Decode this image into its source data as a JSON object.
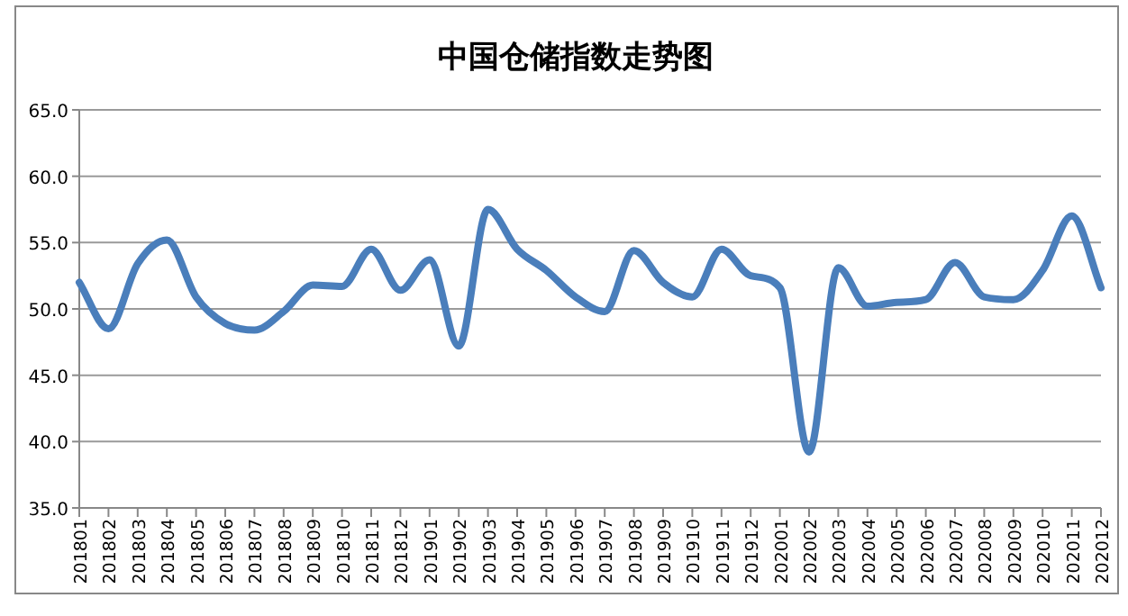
{
  "chart_data": {
    "type": "line",
    "title": "中国仓储指数走势图",
    "categories": [
      "201801",
      "201802",
      "201803",
      "201804",
      "201805",
      "201806",
      "201807",
      "201808",
      "201809",
      "201810",
      "201811",
      "201812",
      "201901",
      "201902",
      "201903",
      "201904",
      "201905",
      "201906",
      "201907",
      "201908",
      "201909",
      "201910",
      "201911",
      "201912",
      "202001",
      "202002",
      "202003",
      "202004",
      "202005",
      "202006",
      "202007",
      "202008",
      "202009",
      "202010",
      "202011",
      "202012"
    ],
    "series": [
      {
        "color": "#4a7ebb",
        "values": [
          52.0,
          48.5,
          53.4,
          55.2,
          50.9,
          48.9,
          48.4,
          49.8,
          51.8,
          51.7,
          54.5,
          51.4,
          53.7,
          47.2,
          57.5,
          54.5,
          52.9,
          50.9,
          49.8,
          54.4,
          52.0,
          50.9,
          54.5,
          52.5,
          51.6,
          39.2,
          53.1,
          50.2,
          50.5,
          50.7,
          53.5,
          50.9,
          50.7,
          52.9,
          57.0,
          51.6
        ]
      }
    ],
    "ylim": [
      35,
      65
    ],
    "yticks": [
      {
        "value": 35,
        "label": "35.0"
      },
      {
        "value": 40,
        "label": "40.0"
      },
      {
        "value": 45,
        "label": "45.0"
      },
      {
        "value": 50,
        "label": "50.0"
      },
      {
        "value": 55,
        "label": "55.0"
      },
      {
        "value": 60,
        "label": "60.0"
      },
      {
        "value": 65,
        "label": "65.0"
      }
    ],
    "grid": "y",
    "marker": "none",
    "line_style": "solid"
  }
}
